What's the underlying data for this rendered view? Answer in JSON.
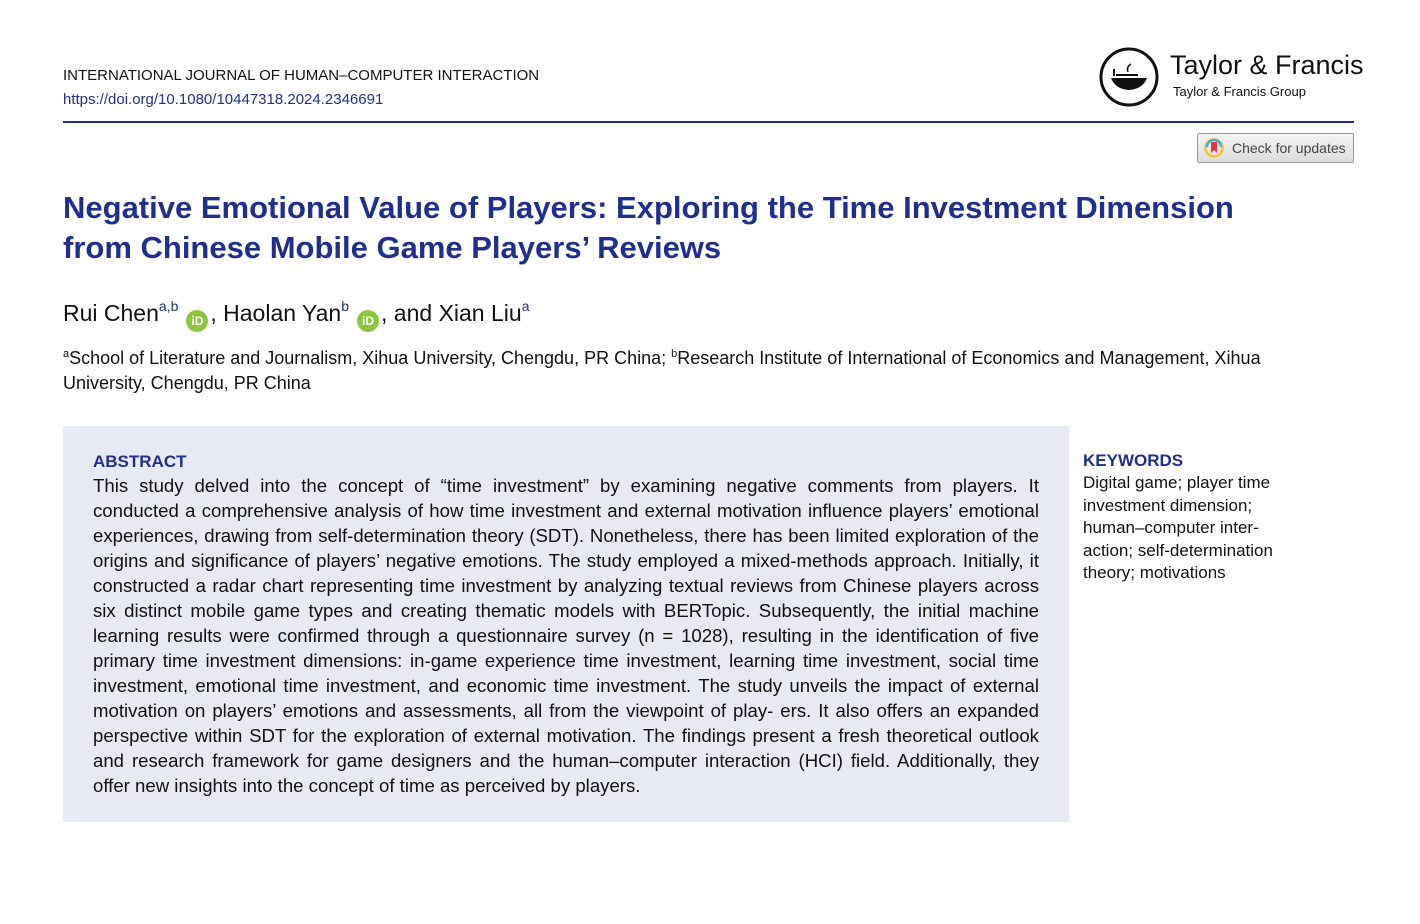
{
  "header": {
    "journal": "INTERNATIONAL JOURNAL OF HUMAN–COMPUTER INTERACTION",
    "doi": "https://doi.org/10.1080/10447318.2024.2346691",
    "publisher": "Taylor & Francis",
    "publisher_group": "Taylor & Francis Group",
    "check_updates": "Check for updates"
  },
  "title": {
    "line1": "Negative Emotional Value of Players: Exploring the Time Investment Dimension",
    "line2": "from Chinese Mobile Game Players’ Reviews"
  },
  "authors": [
    {
      "name": "Rui Chen",
      "sup": "a,b",
      "orcid": "iD",
      "sep": ", "
    },
    {
      "name": "Haolan Yan",
      "sup": "b",
      "orcid": "iD",
      "sep": ", and "
    },
    {
      "name": "Xian Liu",
      "sup": "a"
    }
  ],
  "affiliations": [
    {
      "sup": "a",
      "text": "School of Literature and Journalism, Xihua University, Chengdu, PR China; "
    },
    {
      "sup": "b",
      "text": "Research Institute of International of Economics and Management, Xihua University, Chengdu, PR China"
    }
  ],
  "abstract": {
    "heading": "ABSTRACT",
    "lines": [
      "This study delved into the concept of “time investment” by examining negative comments from",
      "players. It conducted a comprehensive analysis of how time investment and external motivation",
      "influence players’ emotional experiences, drawing from self-determination theory (SDT). Nonetheless,",
      "there has been limited exploration of the origins and significance of players’ negative emotions. The",
      "study employed a mixed-methods approach. Initially, it constructed a radar chart representing time",
      "investment by analyzing textual reviews from Chinese players across six distinct mobile game types",
      "and creating thematic models with BERTopic. Subsequently, the initial machine learning results were",
      "confirmed through a questionnaire survey (n = 1028), resulting in the identification of five primary",
      "time investment dimensions: in-game experience time investment, learning time investment, social",
      "time investment, emotional time investment, and economic time investment. The study unveils the",
      "impact of external motivation on players’ emotions and assessments, all from the viewpoint of play-",
      "ers. It also offers an expanded perspective within SDT for the exploration of external motivation.",
      "The findings present a fresh theoretical outlook and research framework for game designers and",
      "the human–computer interaction (HCI) field. Additionally, they offer new insights into the concept",
      "of time as perceived by players."
    ]
  },
  "keywords": {
    "heading": "KEYWORDS",
    "lines": [
      "Digital game; player time",
      "investment dimension;",
      "human–computer inter-",
      "action; self-determination",
      "theory; motivations"
    ]
  },
  "colors": {
    "accent": "#1f2f8f",
    "abstract_bg": "#e7eaf3",
    "orcid": "#8cc63f"
  }
}
